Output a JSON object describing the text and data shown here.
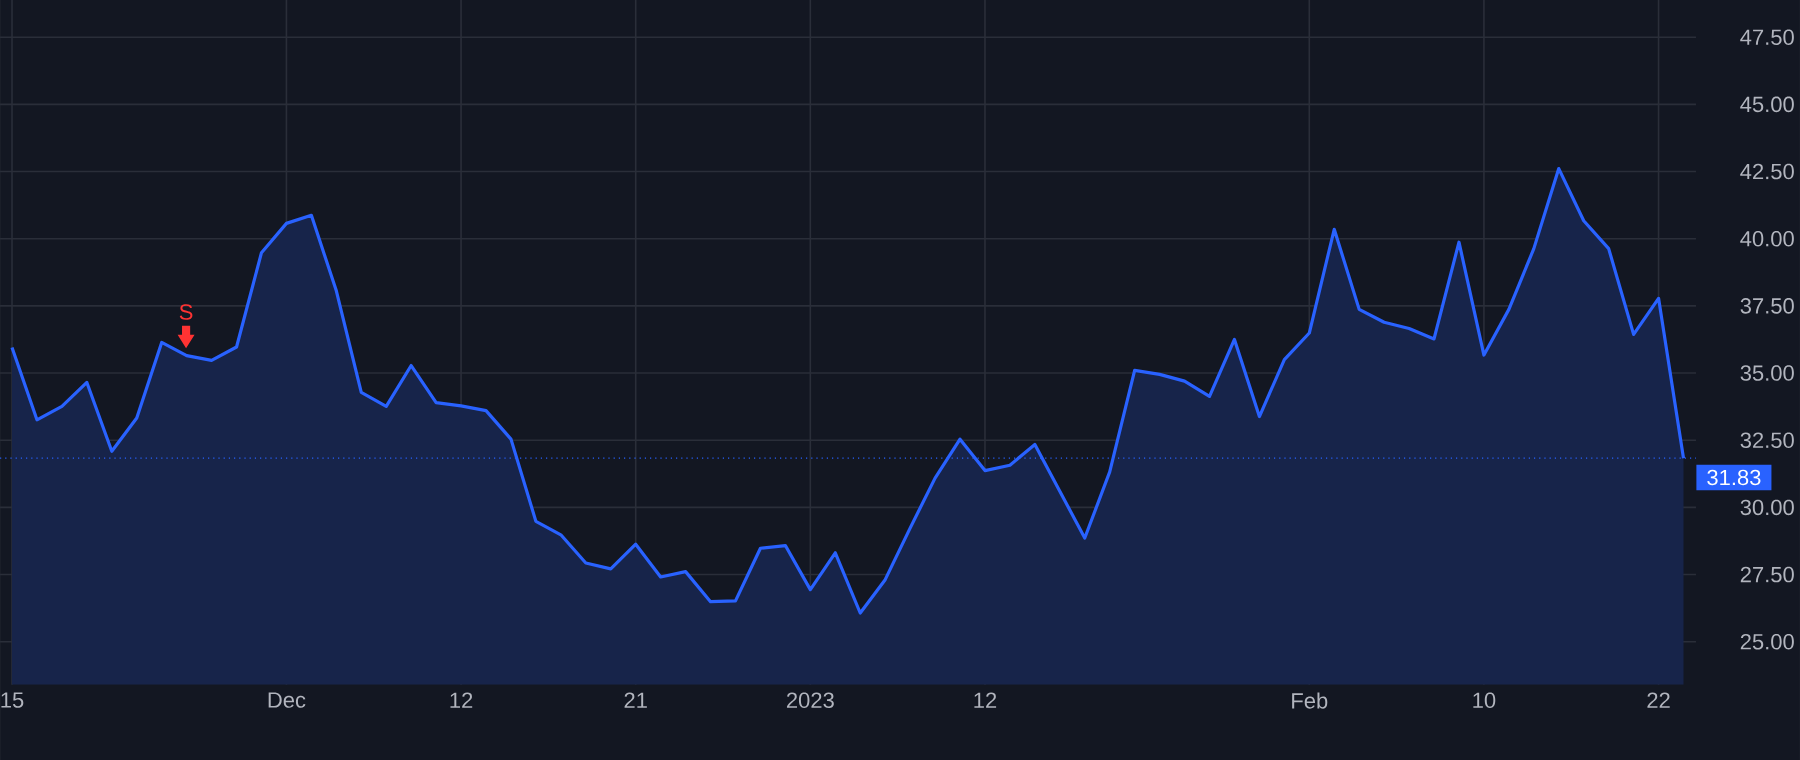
{
  "chart_data": {
    "type": "area",
    "categories": [
      "15",
      null,
      null,
      null,
      null,
      null,
      null,
      null,
      null,
      null,
      null,
      "Dec",
      null,
      null,
      null,
      null,
      null,
      null,
      "12",
      null,
      null,
      null,
      null,
      null,
      null,
      "21",
      null,
      null,
      null,
      null,
      null,
      null,
      "2023",
      null,
      null,
      null,
      null,
      null,
      null,
      "12",
      null,
      null,
      null,
      null,
      null,
      null,
      null,
      null,
      null,
      null,
      null,
      null,
      "Feb",
      null,
      null,
      null,
      null,
      null,
      null,
      "10",
      null,
      null,
      null,
      null,
      null,
      null,
      "22",
      null
    ],
    "series": [
      {
        "color": "#2962ff",
        "values": [
          35.95,
          33.26,
          33.76,
          34.65,
          32.09,
          33.33,
          36.14,
          35.65,
          35.47,
          35.97,
          39.48,
          40.57,
          40.87,
          38.06,
          34.28,
          33.76,
          35.28,
          33.9,
          33.78,
          33.6,
          32.54,
          29.48,
          28.98,
          27.93,
          27.71,
          28.63,
          27.41,
          27.61,
          26.49,
          26.52,
          28.48,
          28.58,
          26.94,
          28.31,
          26.07,
          27.31,
          29.23,
          31.09,
          32.54,
          31.37,
          31.57,
          32.34,
          30.6,
          28.86,
          31.32,
          35.1,
          34.95,
          34.7,
          34.13,
          36.25,
          33.38,
          35.5,
          36.49,
          40.35,
          37.37,
          36.89,
          36.66,
          36.27,
          39.87,
          35.67,
          37.37,
          39.63,
          42.61,
          40.67,
          39.63,
          36.44,
          37.78,
          31.83
        ]
      }
    ],
    "ylim": [
      23.4,
      49.6
    ],
    "yticks": [
      {
        "value": 25,
        "label": "25.00"
      },
      {
        "value": 27.5,
        "label": "27.50"
      },
      {
        "value": 30,
        "label": "30.00"
      },
      {
        "value": 32.5,
        "label": "32.50"
      },
      {
        "value": 35,
        "label": "35.00"
      },
      {
        "value": 37.5,
        "label": "37.50"
      },
      {
        "value": 40,
        "label": "40.00"
      },
      {
        "value": 42.5,
        "label": "42.50"
      },
      {
        "value": 45,
        "label": "45.00"
      },
      {
        "value": 47.5,
        "label": "47.50"
      }
    ],
    "grid": true,
    "ref_lines": [
      {
        "axis": "y",
        "value": 31.83,
        "label": "31.83",
        "color": "#2962ff",
        "line_style": "dotted"
      }
    ],
    "annotations": [
      "S"
    ]
  }
}
